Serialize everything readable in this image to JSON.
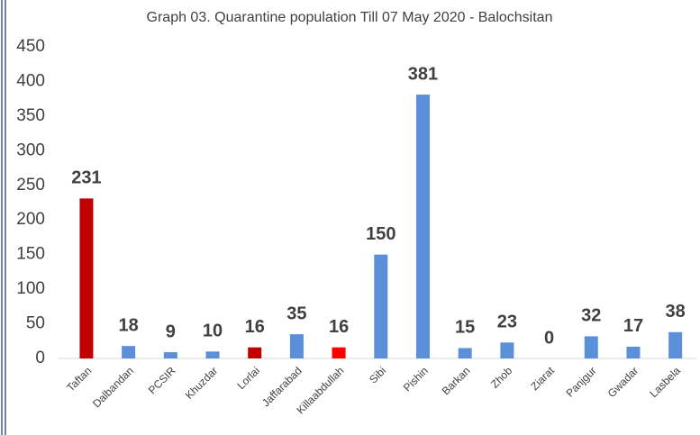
{
  "chart_data": {
    "type": "bar",
    "title": "Graph 03. Quarantine population Till 07 May  2020 - Balochsitan",
    "categories": [
      "Taftan",
      "Dalbandan",
      "PCSIR",
      "Khuzdar",
      "Lorlai",
      "Jaffarabad",
      "Killaabdullah",
      "Sibi",
      "Pishin",
      "Barkan",
      "Zhob",
      "Ziarat",
      "Panjgur",
      "Gwadar",
      "Lasbela"
    ],
    "values": [
      231,
      18,
      9,
      10,
      16,
      35,
      16,
      150,
      381,
      15,
      23,
      0,
      32,
      17,
      38
    ],
    "colors": [
      "#c00000",
      "#5b8fd9",
      "#5b8fd9",
      "#5b8fd9",
      "#c00000",
      "#5b8fd9",
      "#ff0000",
      "#5b8fd9",
      "#5b8fd9",
      "#5b8fd9",
      "#5b8fd9",
      "#5b8fd9",
      "#5b8fd9",
      "#5b8fd9",
      "#5b8fd9"
    ],
    "ylim": [
      0,
      450
    ],
    "yticks": [
      0,
      50,
      100,
      150,
      200,
      250,
      300,
      350,
      400,
      450
    ],
    "grid": false
  }
}
